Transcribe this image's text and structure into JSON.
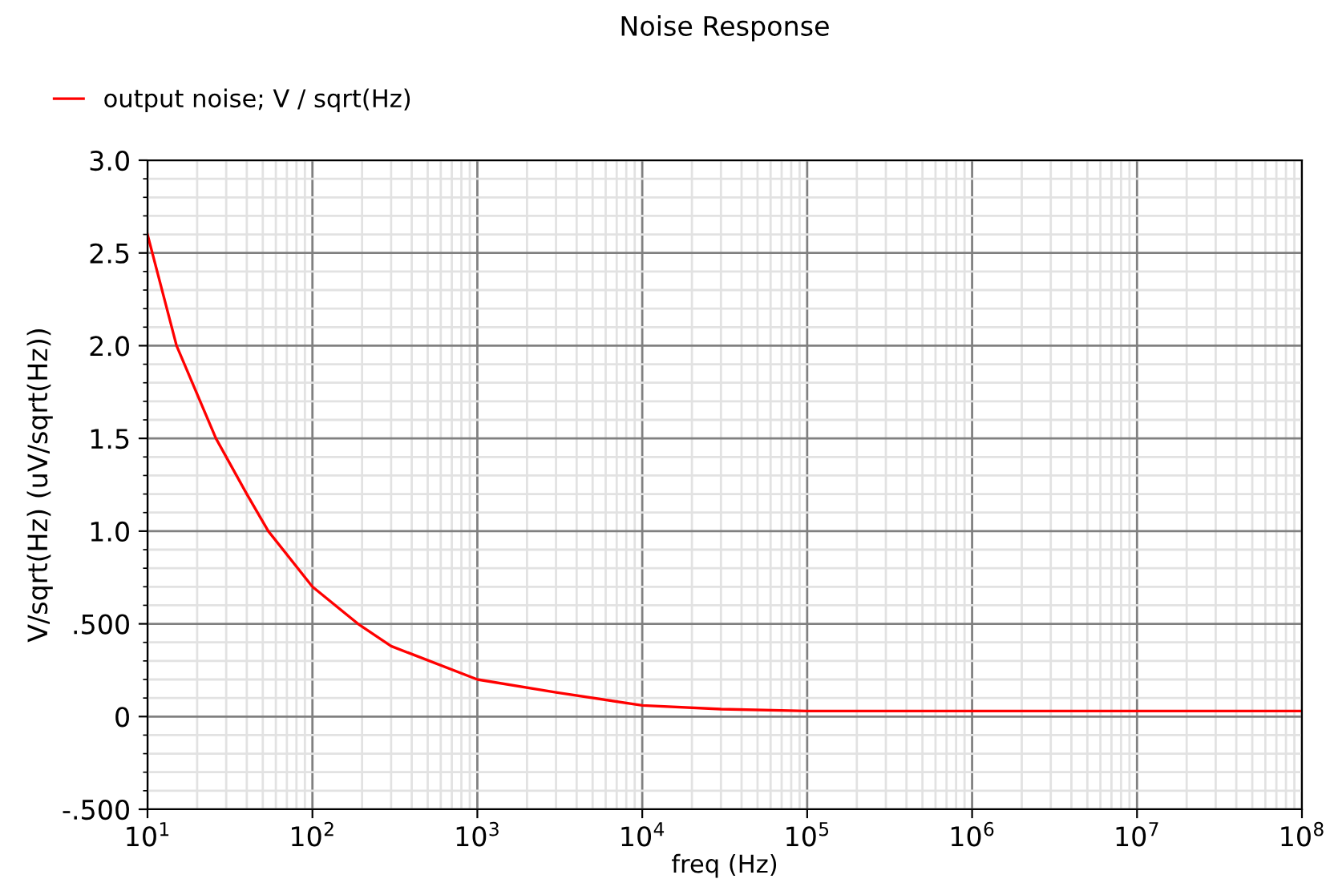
{
  "chart_data": {
    "type": "line",
    "title": "Noise Response",
    "xlabel": "freq (Hz)",
    "ylabel": "V/sqrt(Hz) (uV/sqrt(Hz))",
    "log": "x",
    "grid": true,
    "legend": "top left",
    "marker": "none",
    "line_style": "solid",
    "xlim": [
      10,
      100000000
    ],
    "xticks": [
      {
        "value": 10,
        "label": "10$^{1}$"
      },
      {
        "value": 100,
        "label": "10$^{2}$"
      },
      {
        "value": 1000,
        "label": "10$^{3}$"
      },
      {
        "value": 10000,
        "label": "10$^{4}$"
      },
      {
        "value": 100000,
        "label": "10$^{5}$"
      },
      {
        "value": 1000000,
        "label": "10$^{6}$"
      },
      {
        "value": 10000000,
        "label": "10$^{7}$"
      },
      {
        "value": 100000000,
        "label": "10$^{8}$"
      }
    ],
    "ylim": [
      -0.5,
      3.0
    ],
    "yticks": [
      {
        "value": -0.5,
        "label": "-.500"
      },
      0,
      {
        "value": 0.5,
        "label": ".500"
      },
      {
        "value": 1.0,
        "label": "1.0"
      },
      {
        "value": 1.5,
        "label": "1.5"
      },
      {
        "value": 2.0,
        "label": "2.0"
      },
      {
        "value": 2.5,
        "label": "2.5"
      },
      {
        "value": 3.0,
        "label": "3.0"
      }
    ],
    "x": [
      10,
      15,
      26,
      40,
      54,
      100,
      189,
      300,
      1000,
      3000,
      10000,
      30000,
      100000,
      1000000,
      10000000,
      100000000
    ],
    "series": [
      {
        "name": "output noise; V / sqrt(Hz)",
        "color": "#ff0000",
        "values": [
          2.6,
          2.0,
          1.5,
          1.2,
          1.0,
          0.7,
          0.5,
          0.38,
          0.2,
          0.13,
          0.06,
          0.04,
          0.03,
          0.03,
          0.03,
          0.03
        ]
      }
    ]
  }
}
